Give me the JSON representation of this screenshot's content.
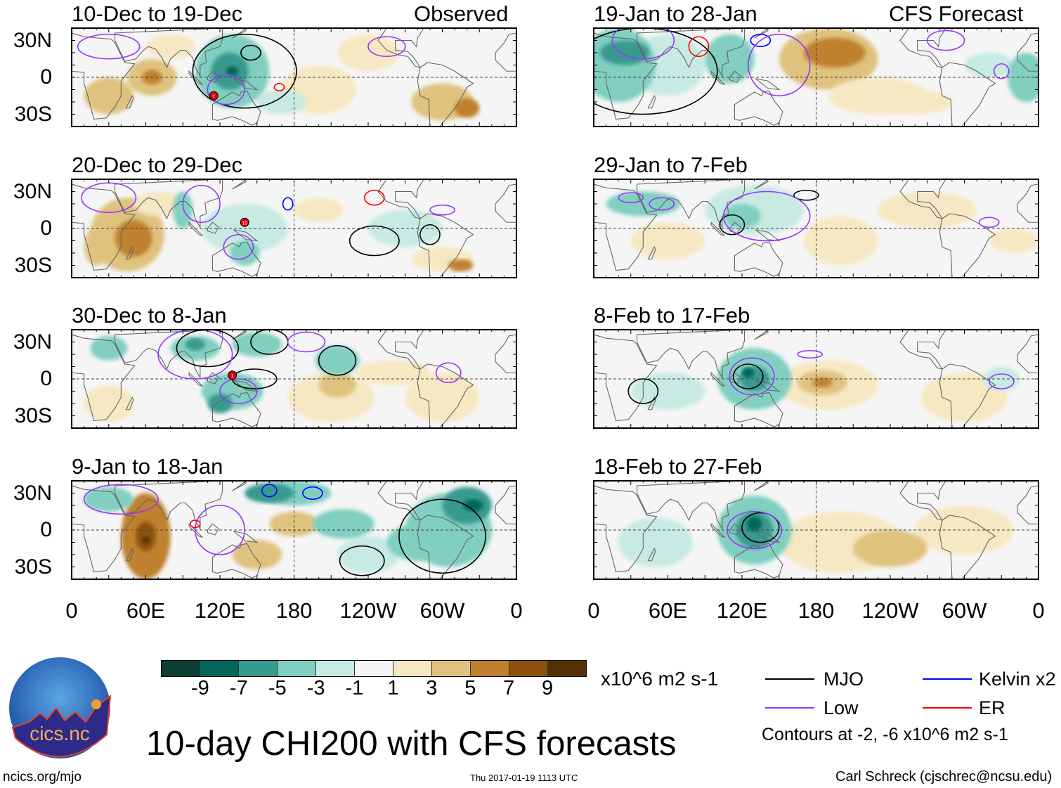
{
  "figure_title": "10-day CHI200 with CFS forecasts",
  "headers": {
    "left": "Observed",
    "right": "CFS Forecast"
  },
  "y_ticks": [
    "30N",
    "0",
    "30S"
  ],
  "x_ticks": [
    "0",
    "60E",
    "120E",
    "180",
    "120W",
    "60W",
    "0"
  ],
  "colorbar": {
    "labels": [
      "-9",
      "-7",
      "-5",
      "-3",
      "-1",
      "1",
      "3",
      "5",
      "7",
      "9"
    ],
    "colors": [
      "#0b3f35",
      "#04665a",
      "#379a8f",
      "#80cfc0",
      "#c7eae3",
      "#f5f5f5",
      "#f6e8c3",
      "#dfc27d",
      "#bf812d",
      "#8c510a",
      "#543005"
    ],
    "units": "x10^6 m2 s-1"
  },
  "legend": {
    "items": [
      {
        "label": "MJO",
        "color": "#000000",
        "key": "mjo"
      },
      {
        "label": "Kelvin x2",
        "color": "#0000ff",
        "key": "kelvin"
      },
      {
        "label": "Low",
        "color": "#9933ff",
        "key": "low"
      },
      {
        "label": "ER",
        "color": "#ff0000",
        "key": "er"
      }
    ],
    "note": "Contours at -2, -6 x10^6 m2 s-1"
  },
  "footer": {
    "url": "ncics.org/mjo",
    "timestamp": "Thu 2017-01-19 1113 UTC",
    "author": "Carl Schreck (cjschrec@ncsu.edu)"
  },
  "logo": {
    "text": "cics.nc",
    "ring_text": "Cooperative Institute for Climate and Satellites"
  },
  "chart_data": {
    "type": "map",
    "variable": "CHI200 anomaly",
    "lon_range": [
      0,
      360
    ],
    "lat_range": [
      -40,
      40
    ],
    "panels": [
      {
        "title": "10-Dec to 19-Dec",
        "kind": "observed",
        "fills": [
          [
            30,
            -15,
            20,
            15,
            3
          ],
          [
            65,
            0,
            20,
            15,
            3
          ],
          [
            65,
            0,
            8,
            6,
            5
          ],
          [
            240,
            20,
            25,
            15,
            1
          ],
          [
            80,
            25,
            20,
            10,
            1
          ],
          [
            200,
            -10,
            30,
            20,
            1
          ],
          [
            300,
            -20,
            25,
            15,
            3
          ],
          [
            320,
            -25,
            10,
            8,
            5
          ],
          [
            170,
            -20,
            20,
            10,
            -1
          ],
          [
            130,
            5,
            30,
            30,
            -3
          ],
          [
            128,
            5,
            15,
            15,
            -5
          ],
          [
            130,
            5,
            5,
            4,
            -7
          ]
        ],
        "contours": [
          [
            140,
            5,
            42,
            30,
            "mjo"
          ],
          [
            145,
            20,
            8,
            6,
            "mjo"
          ],
          [
            115,
            -15,
            3,
            3,
            "er"
          ],
          [
            168,
            -8,
            4,
            3,
            "er"
          ],
          [
            30,
            25,
            25,
            10,
            "low"
          ],
          [
            125,
            -10,
            15,
            12,
            "low"
          ],
          [
            255,
            25,
            15,
            8,
            "low"
          ]
        ],
        "markers": [
          [
            115,
            -15,
            "Y"
          ]
        ]
      },
      {
        "title": "20-Dec to 29-Dec",
        "kind": "observed",
        "fills": [
          [
            45,
            -5,
            30,
            30,
            3
          ],
          [
            20,
            -15,
            10,
            15,
            3
          ],
          [
            50,
            -8,
            15,
            15,
            5
          ],
          [
            300,
            -25,
            25,
            10,
            1
          ],
          [
            315,
            -30,
            10,
            5,
            5
          ],
          [
            200,
            15,
            20,
            10,
            1
          ],
          [
            70,
            20,
            20,
            10,
            1
          ],
          [
            140,
            0,
            35,
            20,
            -1
          ],
          [
            270,
            0,
            30,
            15,
            -1
          ],
          [
            140,
            -20,
            12,
            10,
            -3
          ],
          [
            90,
            15,
            8,
            15,
            -3
          ]
        ],
        "contours": [
          [
            245,
            -10,
            20,
            12,
            "mjo"
          ],
          [
            290,
            -5,
            8,
            8,
            "mjo"
          ],
          [
            175,
            20,
            4,
            5,
            "kelvin"
          ],
          [
            245,
            25,
            8,
            6,
            "er"
          ],
          [
            140,
            5,
            3,
            3,
            "er"
          ],
          [
            30,
            25,
            22,
            12,
            "low"
          ],
          [
            105,
            20,
            15,
            15,
            "low"
          ],
          [
            300,
            15,
            10,
            4,
            "low"
          ],
          [
            135,
            -15,
            12,
            10,
            "low"
          ]
        ],
        "markers": [
          [
            140,
            5,
            "10"
          ]
        ]
      },
      {
        "title": "30-Dec to 8-Jan",
        "kind": "observed",
        "fills": [
          [
            210,
            -15,
            35,
            20,
            1
          ],
          [
            215,
            -5,
            15,
            10,
            3
          ],
          [
            30,
            -20,
            20,
            15,
            1
          ],
          [
            300,
            -15,
            30,
            20,
            1
          ],
          [
            260,
            5,
            30,
            10,
            1
          ],
          [
            100,
            25,
            20,
            10,
            -3
          ],
          [
            150,
            28,
            20,
            10,
            -3
          ],
          [
            215,
            15,
            18,
            12,
            -3
          ],
          [
            130,
            -10,
            25,
            15,
            -3
          ],
          [
            30,
            25,
            15,
            10,
            -3
          ],
          [
            100,
            28,
            8,
            5,
            -5
          ],
          [
            120,
            -20,
            10,
            8,
            -5
          ]
        ],
        "contours": [
          [
            110,
            25,
            25,
            15,
            "mjo"
          ],
          [
            160,
            30,
            15,
            10,
            "mjo"
          ],
          [
            148,
            0,
            18,
            8,
            "mjo"
          ],
          [
            215,
            15,
            15,
            12,
            "mjo"
          ],
          [
            130,
            3,
            3,
            3,
            "er"
          ],
          [
            100,
            20,
            30,
            20,
            "low"
          ],
          [
            190,
            30,
            15,
            8,
            "low"
          ],
          [
            305,
            5,
            10,
            8,
            "low"
          ],
          [
            135,
            -10,
            15,
            10,
            "low"
          ]
        ],
        "markers": [
          [
            130,
            3,
            "1"
          ]
        ]
      },
      {
        "title": "9-Jan to 18-Jan",
        "kind": "observed",
        "fills": [
          [
            60,
            -5,
            20,
            35,
            5
          ],
          [
            180,
            5,
            20,
            10,
            3
          ],
          [
            150,
            -20,
            20,
            12,
            3
          ],
          [
            240,
            -20,
            25,
            15,
            -1
          ],
          [
            60,
            -5,
            8,
            12,
            7
          ],
          [
            60,
            -8,
            3,
            3,
            9
          ],
          [
            30,
            25,
            20,
            10,
            -3
          ],
          [
            180,
            30,
            30,
            10,
            -3
          ],
          [
            220,
            5,
            25,
            12,
            -3
          ],
          [
            305,
            0,
            35,
            30,
            -3
          ],
          [
            280,
            -10,
            25,
            15,
            -3
          ],
          [
            160,
            30,
            20,
            8,
            -5
          ],
          [
            320,
            20,
            20,
            15,
            -5
          ],
          [
            325,
            20,
            8,
            5,
            -7
          ]
        ],
        "contours": [
          [
            300,
            -5,
            35,
            30,
            "mjo"
          ],
          [
            235,
            -25,
            18,
            12,
            "mjo"
          ],
          [
            40,
            25,
            30,
            12,
            "low"
          ],
          [
            120,
            0,
            20,
            20,
            "low"
          ],
          [
            160,
            32,
            6,
            5,
            "kelvin"
          ],
          [
            195,
            30,
            8,
            5,
            "kelvin"
          ],
          [
            100,
            5,
            4,
            3,
            "er"
          ]
        ],
        "markers": []
      },
      {
        "title": "19-Jan to 28-Jan",
        "kind": "forecast",
        "fills": [
          [
            60,
            10,
            30,
            25,
            -1
          ],
          [
            320,
            10,
            20,
            10,
            -1
          ],
          [
            20,
            10,
            30,
            30,
            -3
          ],
          [
            110,
            15,
            20,
            20,
            -3
          ],
          [
            350,
            0,
            15,
            20,
            -3
          ],
          [
            25,
            20,
            20,
            10,
            -5
          ],
          [
            190,
            15,
            40,
            25,
            3
          ],
          [
            230,
            -15,
            40,
            15,
            1
          ],
          [
            260,
            -20,
            30,
            10,
            1
          ],
          [
            195,
            20,
            25,
            12,
            5
          ]
        ],
        "contours": [
          [
            40,
            5,
            60,
            35,
            "mjo"
          ],
          [
            85,
            25,
            8,
            8,
            "er"
          ],
          [
            135,
            30,
            8,
            5,
            "kelvin"
          ],
          [
            40,
            30,
            25,
            15,
            "low"
          ],
          [
            150,
            10,
            25,
            25,
            "low"
          ],
          [
            330,
            5,
            6,
            6,
            "low"
          ],
          [
            285,
            30,
            15,
            8,
            "low"
          ]
        ],
        "markers": []
      },
      {
        "title": "29-Jan to 7-Feb",
        "kind": "forecast",
        "fills": [
          [
            60,
            -10,
            30,
            15,
            1
          ],
          [
            270,
            15,
            40,
            15,
            1
          ],
          [
            200,
            -10,
            30,
            20,
            1
          ],
          [
            340,
            -10,
            20,
            10,
            1
          ],
          [
            130,
            15,
            40,
            20,
            -1
          ],
          [
            40,
            20,
            30,
            10,
            -3
          ],
          [
            120,
            10,
            15,
            10,
            -3
          ]
        ],
        "contours": [
          [
            112,
            3,
            10,
            8,
            "mjo"
          ],
          [
            172,
            27,
            10,
            4,
            "mjo"
          ],
          [
            140,
            10,
            35,
            20,
            "low"
          ],
          [
            320,
            5,
            8,
            4,
            "low"
          ],
          [
            30,
            25,
            10,
            4,
            "low"
          ],
          [
            55,
            20,
            10,
            5,
            "low"
          ]
        ],
        "markers": []
      },
      {
        "title": "8-Feb to 17-Feb",
        "kind": "forecast",
        "fills": [
          [
            190,
            -5,
            40,
            20,
            1
          ],
          [
            300,
            -15,
            35,
            20,
            1
          ],
          [
            185,
            -3,
            20,
            10,
            3
          ],
          [
            185,
            -3,
            8,
            4,
            5
          ],
          [
            60,
            -10,
            30,
            15,
            -1
          ],
          [
            330,
            0,
            15,
            10,
            -1
          ],
          [
            130,
            0,
            30,
            25,
            -3
          ],
          [
            130,
            0,
            12,
            10,
            -5
          ],
          [
            125,
            5,
            5,
            4,
            -7
          ]
        ],
        "contours": [
          [
            125,
            2,
            12,
            10,
            "mjo"
          ],
          [
            40,
            -10,
            12,
            10,
            "mjo"
          ],
          [
            128,
            2,
            18,
            15,
            "low"
          ],
          [
            175,
            20,
            10,
            3,
            "low"
          ],
          [
            330,
            -2,
            10,
            6,
            "low"
          ]
        ],
        "markers": []
      },
      {
        "title": "18-Feb to 27-Feb",
        "kind": "forecast",
        "fills": [
          [
            200,
            -10,
            50,
            25,
            1
          ],
          [
            300,
            0,
            40,
            20,
            1
          ],
          [
            240,
            -15,
            30,
            15,
            3
          ],
          [
            50,
            -10,
            30,
            20,
            -1
          ],
          [
            130,
            0,
            30,
            28,
            -3
          ],
          [
            130,
            0,
            15,
            15,
            -5
          ],
          [
            130,
            5,
            6,
            6,
            -7
          ]
        ],
        "contours": [
          [
            135,
            2,
            15,
            12,
            "mjo"
          ],
          [
            130,
            0,
            22,
            15,
            "low"
          ]
        ],
        "markers": []
      }
    ]
  }
}
